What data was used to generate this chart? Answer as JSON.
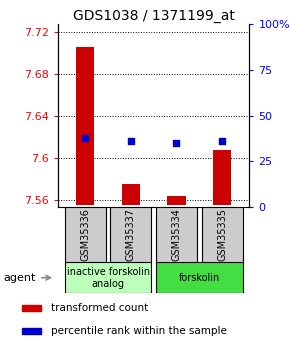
{
  "title": "GDS1038 / 1371199_at",
  "samples": [
    "GSM35336",
    "GSM35337",
    "GSM35334",
    "GSM35335"
  ],
  "bar_values": [
    7.705,
    7.575,
    7.563,
    7.607
  ],
  "bar_baseline": 7.555,
  "percentile_values": [
    38,
    36,
    35,
    36
  ],
  "ylim_left": [
    7.553,
    7.727
  ],
  "ylim_right": [
    0,
    100
  ],
  "yticks_left": [
    7.56,
    7.6,
    7.64,
    7.68,
    7.72
  ],
  "yticks_right": [
    0,
    25,
    50,
    75,
    100
  ],
  "ytick_labels_left": [
    "7.56",
    "7.6",
    "7.64",
    "7.68",
    "7.72"
  ],
  "ytick_labels_right": [
    "0",
    "25",
    "50",
    "75",
    "100%"
  ],
  "bar_color": "#cc0000",
  "dot_color": "#0000cc",
  "groups": [
    {
      "label": "inactive forskolin\nanalog",
      "samples": [
        0,
        1
      ],
      "color": "#bbffbb"
    },
    {
      "label": "forskolin",
      "samples": [
        2,
        3
      ],
      "color": "#44dd44"
    }
  ],
  "legend_items": [
    {
      "color": "#cc0000",
      "label": "transformed count"
    },
    {
      "color": "#0000cc",
      "label": "percentile rank within the sample"
    }
  ],
  "agent_label": "agent",
  "background_color": "#ffffff",
  "plot_bg": "#ffffff",
  "title_fontsize": 10,
  "tick_fontsize": 8
}
